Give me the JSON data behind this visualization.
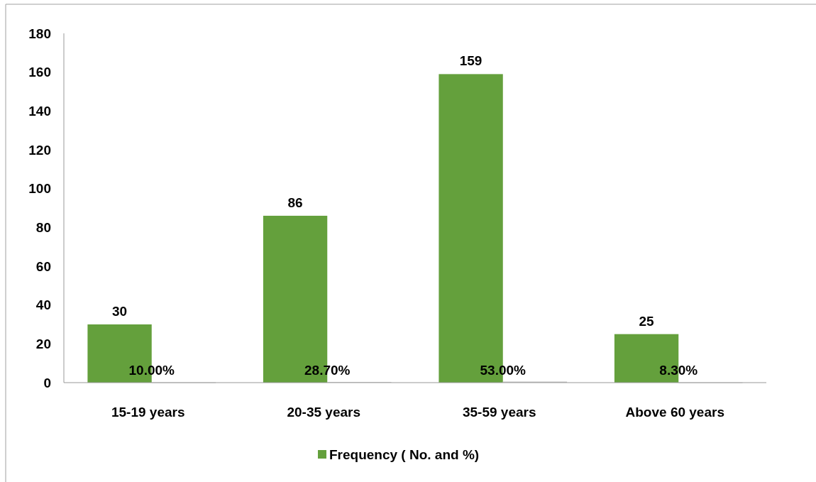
{
  "chart_data": {
    "type": "bar",
    "categories": [
      "15-19 years",
      "20-35 years",
      "35-59 years",
      "Above 60 years"
    ],
    "series": [
      {
        "name": "Frequency ( No. and %)",
        "color": "#64a03c",
        "values": [
          30,
          86,
          159,
          25
        ],
        "value_labels": [
          "30",
          "86",
          "159",
          "25"
        ]
      },
      {
        "color": "#bfbfbf",
        "values": [
          0.1,
          0.287,
          0.53,
          0.083
        ],
        "value_labels": [
          "10.00%",
          "28.70%",
          "53.00%",
          "8.30%"
        ]
      }
    ],
    "ylim": [
      0,
      180
    ],
    "yticks": [
      0,
      20,
      40,
      60,
      80,
      100,
      120,
      140,
      160,
      180
    ],
    "grid": false,
    "legend": "bottom"
  }
}
